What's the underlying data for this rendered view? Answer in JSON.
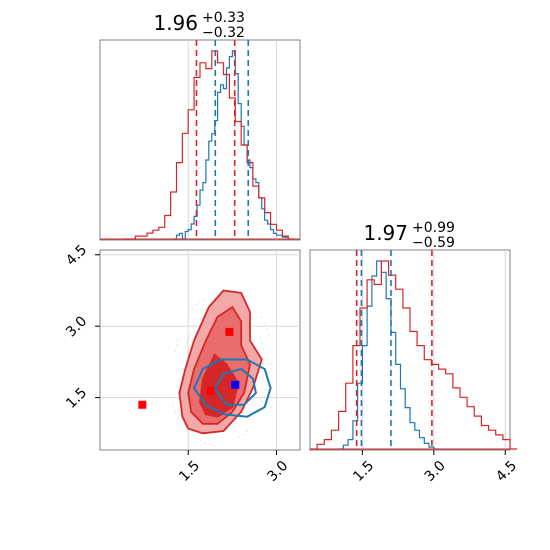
{
  "chart_data": {
    "type": "corner",
    "colors": {
      "blue": "#1f77b4",
      "red": "#d62728",
      "red_fill": "#f08080",
      "grid": "#d8d8d8",
      "marker_blue": "#0000ff",
      "marker_red": "#ff0000"
    },
    "panels": [
      {
        "id": "hist-param1",
        "type": "histogram",
        "title": {
          "main": "1.96",
          "sup": "+0.33",
          "sub": "−0.32"
        },
        "xlim": [
          0.0,
          3.4
        ],
        "grid": true,
        "series": [
          {
            "color": "blue",
            "bins": [
              1.25,
              1.3,
              1.35,
              1.4,
              1.45,
              1.5,
              1.55,
              1.6,
              1.65,
              1.7,
              1.75,
              1.8,
              1.85,
              1.9,
              1.95,
              2.0,
              2.05,
              2.1,
              2.15,
              2.2,
              2.25,
              2.3,
              2.35,
              2.4,
              2.45,
              2.5,
              2.55,
              2.6,
              2.65,
              2.7,
              2.75,
              2.8,
              2.85,
              2.9,
              2.95,
              3.0,
              3.05,
              3.1,
              3.15,
              3.2
            ],
            "values": [
              0,
              0.02,
              0.03,
              0,
              0.04,
              0.05,
              0.08,
              0.12,
              0.18,
              0.26,
              0.3,
              0.42,
              0.52,
              0.56,
              0.63,
              0.78,
              0.82,
              0.8,
              0.91,
              0.97,
              1.0,
              0.88,
              0.72,
              0.6,
              0.5,
              0.42,
              0.38,
              0.32,
              0.3,
              0.22,
              0.16,
              0.1,
              0.08,
              0.05,
              0.03,
              0.02,
              0.02,
              0.01,
              0.01,
              0.0
            ]
          },
          {
            "color": "red",
            "bins": [
              0.4,
              0.5,
              0.6,
              0.7,
              0.8,
              0.9,
              1.0,
              1.1,
              1.2,
              1.3,
              1.4,
              1.5,
              1.6,
              1.7,
              1.8,
              1.9,
              2.0,
              2.1,
              2.2,
              2.3,
              2.4,
              2.5,
              2.6,
              2.7,
              2.8,
              2.9,
              3.0,
              3.1,
              3.2
            ],
            "values": [
              0,
              0,
              0.01,
              0.01,
              0.02,
              0.03,
              0.04,
              0.08,
              0.16,
              0.26,
              0.36,
              0.44,
              0.55,
              0.6,
              0.58,
              0.64,
              0.6,
              0.56,
              0.48,
              0.4,
              0.32,
              0.26,
              0.18,
              0.14,
              0.09,
              0.05,
              0.03,
              0.01,
              0.0
            ]
          }
        ],
        "quantile_lines": [
          {
            "color": "red",
            "x": 1.64
          },
          {
            "color": "red",
            "x": 2.29
          },
          {
            "color": "blue",
            "x": 1.96
          },
          {
            "color": "blue",
            "x": 2.52
          }
        ]
      },
      {
        "id": "hist-param2",
        "type": "histogram",
        "title": {
          "main": "1.97",
          "sup": "+0.99",
          "sub": "−0.59"
        },
        "xlim": [
          0.4,
          4.6
        ],
        "xticks": [
          1.5,
          3.0,
          4.5
        ],
        "xtick_labels": [
          "1.5",
          "3.0",
          "4.5"
        ],
        "grid": true,
        "series": [
          {
            "color": "blue",
            "bins": [
              1.0,
              1.1,
              1.2,
              1.3,
              1.4,
              1.5,
              1.6,
              1.7,
              1.8,
              1.9,
              2.0,
              2.1,
              2.2,
              2.3,
              2.4,
              2.5,
              2.6,
              2.7,
              2.8,
              2.9,
              3.0
            ],
            "values": [
              0,
              0.02,
              0.05,
              0.15,
              0.35,
              0.55,
              0.76,
              0.92,
              1.0,
              0.94,
              0.8,
              0.62,
              0.45,
              0.32,
              0.22,
              0.14,
              0.1,
              0.06,
              0.03,
              0.01,
              0.0
            ]
          },
          {
            "color": "red",
            "bins": [
              0.4,
              0.55,
              0.7,
              0.85,
              1.0,
              1.15,
              1.3,
              1.45,
              1.6,
              1.75,
              1.9,
              2.05,
              2.2,
              2.35,
              2.5,
              2.65,
              2.8,
              2.95,
              3.1,
              3.25,
              3.4,
              3.55,
              3.7,
              3.85,
              4.0,
              4.15,
              4.3,
              4.45,
              4.6
            ],
            "values": [
              0,
              0.01,
              0.02,
              0.04,
              0.08,
              0.14,
              0.22,
              0.3,
              0.36,
              0.35,
              0.4,
              0.37,
              0.34,
              0.3,
              0.25,
              0.22,
              0.19,
              0.18,
              0.17,
              0.16,
              0.13,
              0.11,
              0.09,
              0.07,
              0.05,
              0.04,
              0.03,
              0.02,
              0.0
            ]
          }
        ],
        "quantile_lines": [
          {
            "color": "red",
            "x": 1.38
          },
          {
            "color": "red",
            "x": 2.96
          },
          {
            "color": "blue",
            "x": 1.48
          },
          {
            "color": "blue",
            "x": 2.1
          }
        ]
      },
      {
        "id": "joint-param1-param2",
        "type": "contour",
        "xlim": [
          0.0,
          3.4
        ],
        "ylim": [
          0.4,
          4.6
        ],
        "xticks": [
          1.5,
          3.0
        ],
        "xtick_labels": [
          "1.5",
          "3.0"
        ],
        "yticks": [
          1.5,
          3.0,
          4.5
        ],
        "ytick_labels": [
          "1.5",
          "3.0",
          "4.5"
        ],
        "grid": true,
        "red_levels": [
          {
            "level": "outer",
            "points": [
              [
                1.4,
                1.1
              ],
              [
                1.35,
                1.6
              ],
              [
                1.45,
                2.1
              ],
              [
                1.6,
                2.7
              ],
              [
                1.85,
                3.4
              ],
              [
                2.1,
                3.75
              ],
              [
                2.4,
                3.7
              ],
              [
                2.55,
                3.3
              ],
              [
                2.55,
                2.7
              ],
              [
                2.75,
                2.3
              ],
              [
                2.6,
                1.7
              ],
              [
                2.4,
                1.2
              ],
              [
                2.1,
                0.8
              ],
              [
                1.75,
                0.75
              ],
              [
                1.5,
                0.85
              ]
            ]
          },
          {
            "level": "middle",
            "points": [
              [
                1.55,
                1.2
              ],
              [
                1.5,
                1.6
              ],
              [
                1.6,
                2.1
              ],
              [
                1.8,
                2.7
              ],
              [
                2.0,
                3.2
              ],
              [
                2.25,
                3.4
              ],
              [
                2.4,
                3.1
              ],
              [
                2.4,
                2.6
              ],
              [
                2.55,
                2.2
              ],
              [
                2.45,
                1.6
              ],
              [
                2.25,
                1.2
              ],
              [
                2.0,
                0.95
              ],
              [
                1.75,
                0.95
              ]
            ]
          },
          {
            "level": "inner",
            "points": [
              [
                1.7,
                1.4
              ],
              [
                1.75,
                1.9
              ],
              [
                1.95,
                2.4
              ],
              [
                2.15,
                2.2
              ],
              [
                2.35,
                1.8
              ],
              [
                2.25,
                1.3
              ],
              [
                2.0,
                1.1
              ],
              [
                1.8,
                1.15
              ]
            ]
          }
        ],
        "blue_levels": [
          {
            "level": "outer",
            "points": [
              [
                1.6,
                1.7
              ],
              [
                1.75,
                2.1
              ],
              [
                2.05,
                2.3
              ],
              [
                2.5,
                2.3
              ],
              [
                2.8,
                2.1
              ],
              [
                2.9,
                1.7
              ],
              [
                2.8,
                1.3
              ],
              [
                2.5,
                1.1
              ],
              [
                2.1,
                1.15
              ],
              [
                1.8,
                1.35
              ]
            ]
          },
          {
            "level": "inner",
            "points": [
              [
                1.95,
                1.7
              ],
              [
                2.1,
                2.0
              ],
              [
                2.4,
                2.1
              ],
              [
                2.6,
                1.9
              ],
              [
                2.65,
                1.6
              ],
              [
                2.45,
                1.35
              ],
              [
                2.15,
                1.35
              ]
            ]
          }
        ],
        "markers": [
          {
            "color": "marker_red",
            "x": 0.72,
            "y": 1.35
          },
          {
            "color": "marker_red",
            "x": 1.88,
            "y": 1.64
          },
          {
            "color": "marker_red",
            "x": 2.2,
            "y": 2.88
          },
          {
            "color": "marker_blue",
            "x": 2.3,
            "y": 1.77
          }
        ]
      }
    ]
  }
}
